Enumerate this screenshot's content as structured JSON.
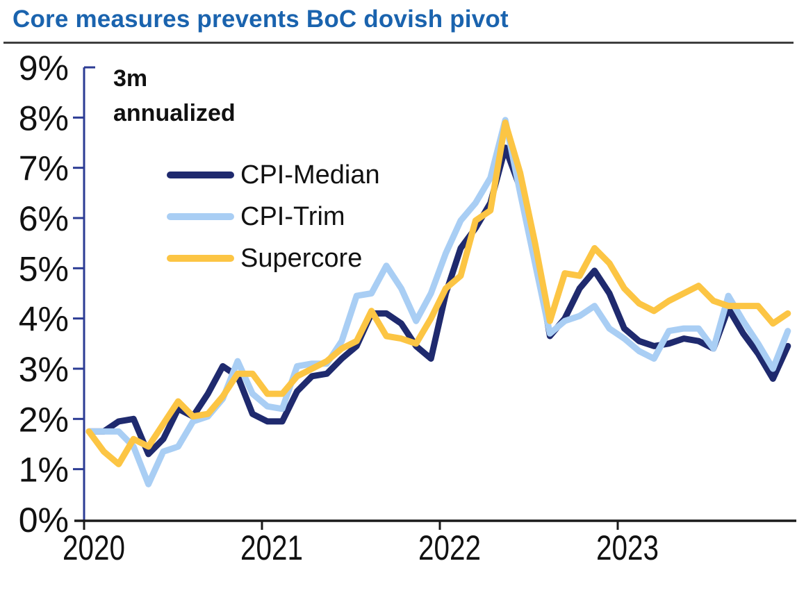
{
  "title": "Core measures prevents BoC dovish pivot",
  "colors": {
    "title": "#1a63ae",
    "rule": "#3f3f3f",
    "y_axis": "#2c3c94",
    "x_axis": "#1a1a1a",
    "tick_text": "#111111",
    "cpi_median": "#1f2a6e",
    "cpi_trim": "#a9cef4",
    "supercore": "#fcc544"
  },
  "chart_data": {
    "type": "line",
    "title": "Core measures prevents BoC dovish pivot",
    "annotation_lines": [
      "3m",
      "annualized"
    ],
    "xlabel": "",
    "ylabel": "",
    "ylim": [
      0,
      9
    ],
    "grid": false,
    "legend_position": "upper-left-inside",
    "y_tick_labels": [
      "0%",
      "1%",
      "2%",
      "3%",
      "4%",
      "5%",
      "6%",
      "7%",
      "8%",
      "9%"
    ],
    "x_year_tick_labels": [
      "2020",
      "2021",
      "2022",
      "2023"
    ],
    "x": [
      "Jan 2020",
      "Feb 2020",
      "Mar 2020",
      "Apr 2020",
      "May 2020",
      "Jun 2020",
      "Jul 2020",
      "Aug 2020",
      "Sep 2020",
      "Oct 2020",
      "Nov 2020",
      "Dec 2020",
      "Jan 2021",
      "Feb 2021",
      "Mar 2021",
      "Apr 2021",
      "May 2021",
      "Jun 2021",
      "Jul 2021",
      "Aug 2021",
      "Sep 2021",
      "Oct 2021",
      "Nov 2021",
      "Dec 2021",
      "Jan 2022",
      "Feb 2022",
      "Mar 2022",
      "Apr 2022",
      "May 2022",
      "Jun 2022",
      "Jul 2022",
      "Aug 2022",
      "Sep 2022",
      "Oct 2022",
      "Nov 2022",
      "Dec 2022",
      "Jan 2023",
      "Feb 2023",
      "Mar 2023",
      "Apr 2023",
      "May 2023",
      "Jun 2023",
      "Jul 2023",
      "Aug 2023",
      "Sep 2023",
      "Oct 2023",
      "Nov 2023",
      "Dec 2023"
    ],
    "series": [
      {
        "name": "CPI-Median",
        "color": "#1f2a6e",
        "values": [
          1.75,
          1.75,
          1.95,
          2.0,
          1.3,
          1.6,
          2.2,
          2.05,
          2.5,
          3.05,
          2.85,
          2.1,
          1.95,
          1.95,
          2.55,
          2.85,
          2.9,
          3.2,
          3.45,
          4.1,
          4.1,
          3.9,
          3.45,
          3.2,
          4.5,
          5.4,
          5.8,
          6.3,
          7.4,
          6.6,
          5.35,
          3.65,
          4.0,
          4.6,
          4.95,
          4.5,
          3.8,
          3.55,
          3.45,
          3.5,
          3.6,
          3.55,
          3.4,
          4.2,
          3.7,
          3.3,
          2.8,
          3.45
        ]
      },
      {
        "name": "CPI-Trim",
        "color": "#a9cef4",
        "values": [
          1.75,
          1.75,
          1.75,
          1.45,
          0.7,
          1.35,
          1.45,
          1.95,
          2.05,
          2.4,
          3.15,
          2.5,
          2.25,
          2.2,
          3.05,
          3.1,
          3.1,
          3.55,
          4.45,
          4.5,
          5.05,
          4.6,
          3.95,
          4.5,
          5.3,
          5.95,
          6.3,
          6.8,
          7.95,
          6.5,
          5.1,
          3.7,
          3.95,
          4.05,
          4.25,
          3.8,
          3.6,
          3.35,
          3.2,
          3.75,
          3.8,
          3.8,
          3.4,
          4.45,
          3.95,
          3.5,
          3.0,
          3.75
        ]
      },
      {
        "name": "Supercore",
        "color": "#fcc544",
        "values": [
          1.75,
          1.35,
          1.1,
          1.6,
          1.45,
          1.9,
          2.35,
          2.05,
          2.1,
          2.45,
          2.9,
          2.9,
          2.5,
          2.5,
          2.85,
          3.0,
          3.15,
          3.4,
          3.55,
          4.15,
          3.65,
          3.6,
          3.5,
          4.0,
          4.6,
          4.85,
          5.95,
          6.15,
          7.9,
          6.9,
          5.5,
          3.95,
          4.9,
          4.85,
          5.4,
          5.1,
          4.6,
          4.3,
          4.15,
          4.35,
          4.5,
          4.65,
          4.35,
          4.25,
          4.25,
          4.25,
          3.9,
          4.1
        ]
      }
    ]
  }
}
